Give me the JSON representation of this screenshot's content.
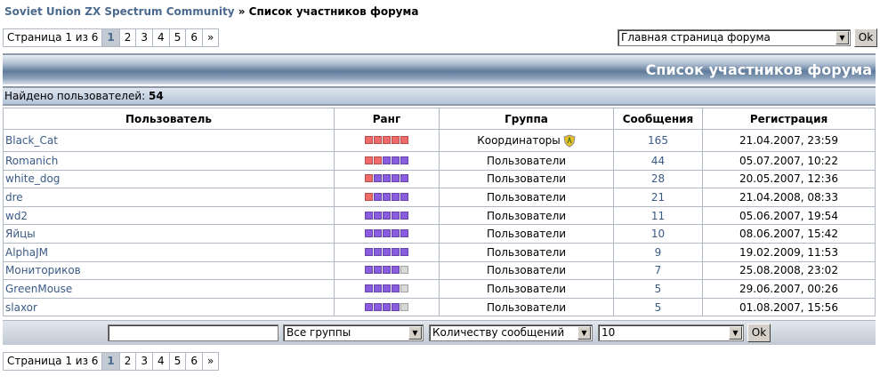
{
  "breadcrumb": {
    "home": "Soviet Union ZX Spectrum Community",
    "sep": " » ",
    "current": "Список участников форума"
  },
  "pager": {
    "label": "Страница 1 из 6",
    "pages": [
      "1",
      "2",
      "3",
      "4",
      "5",
      "6"
    ],
    "next": "»",
    "current": "1"
  },
  "jump": {
    "value": "Главная страница форума",
    "ok": "Ok"
  },
  "title": "Список участников форума",
  "found": {
    "label": "Найдено пользователей:",
    "count": "54"
  },
  "columns": [
    "Пользователь",
    "Ранг",
    "Группа",
    "Сообщения",
    "Регистрация"
  ],
  "rank_colors": {
    "red": "#f06a6a",
    "purple": "#8a5ce0",
    "gray": "#d8d8d8"
  },
  "rows": [
    {
      "user": "Black_Cat",
      "rank": [
        "red",
        "red",
        "red",
        "red",
        "red"
      ],
      "group": "Координаторы",
      "group_icon": "shield-icon",
      "posts": "165",
      "reg": "21.04.2007, 23:59"
    },
    {
      "user": "Romanich",
      "rank": [
        "red",
        "red",
        "purple",
        "purple",
        "purple"
      ],
      "group": "Пользователи",
      "posts": "44",
      "reg": "05.07.2007, 10:22"
    },
    {
      "user": "white_dog",
      "rank": [
        "red",
        "purple",
        "purple",
        "purple",
        "purple"
      ],
      "group": "Пользователи",
      "posts": "28",
      "reg": "20.05.2007, 12:36"
    },
    {
      "user": "dre",
      "rank": [
        "red",
        "purple",
        "purple",
        "purple",
        "purple"
      ],
      "group": "Пользователи",
      "posts": "21",
      "reg": "21.04.2008, 08:33"
    },
    {
      "user": "wd2",
      "rank": [
        "purple",
        "purple",
        "purple",
        "purple",
        "purple"
      ],
      "group": "Пользователи",
      "posts": "11",
      "reg": "05.06.2007, 19:54"
    },
    {
      "user": "Яйцы",
      "rank": [
        "purple",
        "purple",
        "purple",
        "purple",
        "purple"
      ],
      "group": "Пользователи",
      "posts": "10",
      "reg": "08.06.2007, 15:42"
    },
    {
      "user": "AlphaJM",
      "rank": [
        "purple",
        "purple",
        "purple",
        "purple",
        "purple"
      ],
      "group": "Пользователи",
      "posts": "9",
      "reg": "19.02.2009, 11:53"
    },
    {
      "user": "Мониториков",
      "rank": [
        "purple",
        "purple",
        "purple",
        "purple",
        "gray"
      ],
      "group": "Пользователи",
      "posts": "7",
      "reg": "25.08.2008, 23:02"
    },
    {
      "user": "GreenMouse",
      "rank": [
        "purple",
        "purple",
        "purple",
        "purple",
        "gray"
      ],
      "group": "Пользователи",
      "posts": "5",
      "reg": "29.06.2007, 00:26"
    },
    {
      "user": "slaxor",
      "rank": [
        "purple",
        "purple",
        "purple",
        "purple",
        "gray"
      ],
      "group": "Пользователи",
      "posts": "5",
      "reg": "01.08.2007, 15:56"
    }
  ],
  "filter": {
    "search_value": "",
    "group": "Все группы",
    "sort": "Количеству сообщений",
    "per_page": "10",
    "ok": "Ok"
  }
}
